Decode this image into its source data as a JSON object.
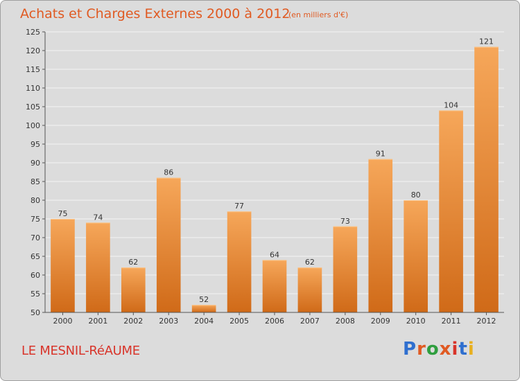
{
  "header": {
    "title": "Achats et Charges Externes 2000 à 2012",
    "subtitle": "(en milliers d'€)"
  },
  "footer": {
    "commune": "LE MESNIL-RéAUME",
    "logo_text": "Proxiti",
    "logo_colors": [
      "#2f6fcf",
      "#e05a22",
      "#2f9e3f",
      "#e05a22",
      "#d8342a",
      "#2f6fcf",
      "#e8b020"
    ]
  },
  "colors": {
    "bar_light": "#f6a75a",
    "bar_dark": "#d06a18",
    "grid": "#f4f4f4",
    "axis": "#555555"
  },
  "chart_data": {
    "type": "bar",
    "title": "Achats et Charges Externes 2000 à 2012",
    "subtitle": "(en milliers d'€)",
    "categories": [
      "2000",
      "2001",
      "2002",
      "2003",
      "2004",
      "2005",
      "2006",
      "2007",
      "2008",
      "2009",
      "2010",
      "2011",
      "2012"
    ],
    "values": [
      75,
      74,
      62,
      86,
      52,
      77,
      64,
      62,
      73,
      91,
      80,
      104,
      121
    ],
    "ylim": [
      50,
      125
    ],
    "yticks": [
      50,
      55,
      60,
      65,
      70,
      75,
      80,
      85,
      90,
      95,
      100,
      105,
      110,
      115,
      120,
      125
    ],
    "grid": true,
    "data_labels": true
  }
}
